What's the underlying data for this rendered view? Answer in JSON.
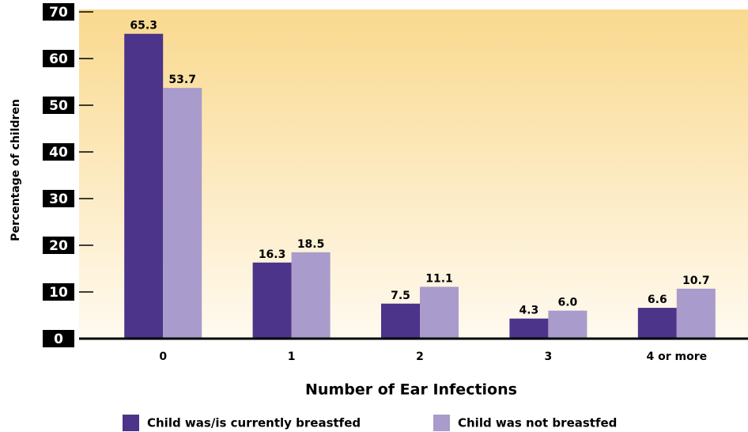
{
  "chart_data": {
    "type": "bar",
    "x_label": "Number of Ear Infections",
    "y_label": "Percentage of children",
    "categories": [
      "0",
      "1",
      "2",
      "3",
      "4 or more"
    ],
    "series": [
      {
        "name": "Child was/is currently breastfed",
        "color": "#4b3489",
        "values": [
          65.3,
          16.3,
          7.5,
          4.3,
          6.6
        ],
        "value_labels": [
          "65.3",
          "16.3",
          "7.5",
          "4.3",
          "6.6"
        ]
      },
      {
        "name": "Child was not breastfed",
        "color": "#a99bcb",
        "values": [
          53.7,
          18.5,
          11.1,
          6.0,
          10.7
        ],
        "value_labels": [
          "53.7",
          "18.5",
          "11.1",
          "6.0",
          "10.7"
        ]
      }
    ],
    "ylim": [
      0,
      70
    ],
    "yticks": [
      0,
      10,
      20,
      30,
      40,
      50,
      60,
      70
    ]
  }
}
